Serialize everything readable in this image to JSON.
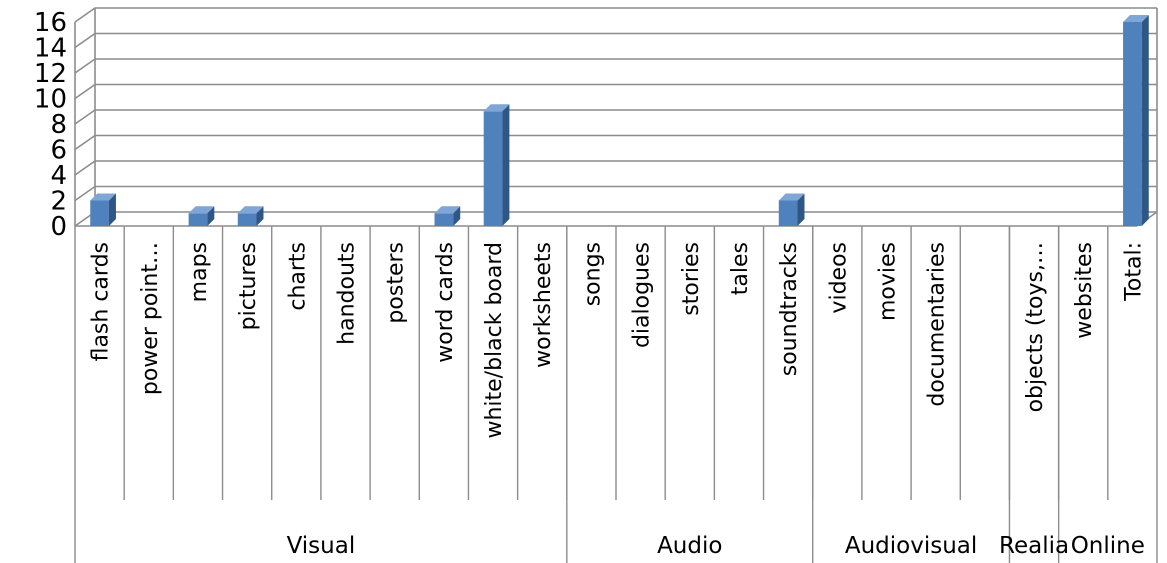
{
  "chart_data": {
    "type": "bar",
    "categories": [
      "flash cards",
      "power point…",
      "maps",
      "pictures",
      "charts",
      "handouts",
      "posters",
      "word cards",
      "white/black board",
      "worksheets",
      "songs",
      "dialogues",
      "stories",
      "tales",
      "soundtracks",
      "videos",
      "movies",
      "documentaries",
      "",
      "objects (toys,…",
      "websites",
      "Total:"
    ],
    "values": [
      2,
      0,
      1,
      1,
      0,
      0,
      0,
      1,
      9,
      0,
      0,
      0,
      0,
      0,
      2,
      0,
      0,
      0,
      0,
      0,
      0,
      16
    ],
    "groups": [
      {
        "label": "Visual",
        "count": 10
      },
      {
        "label": "Audio",
        "count": 5
      },
      {
        "label": "Audiovisual",
        "count": 4
      },
      {
        "label": "Realia",
        "count": 1
      },
      {
        "label": "Online",
        "count": 2
      }
    ],
    "yticks": [
      0,
      2,
      4,
      6,
      8,
      10,
      12,
      14,
      16
    ],
    "ylim": [
      0,
      16
    ],
    "grid": true,
    "legend": "none",
    "colors": {
      "bar": "#4f81bd",
      "bar_side": "#2e5686",
      "bar_top": "#7fa6d6"
    }
  }
}
